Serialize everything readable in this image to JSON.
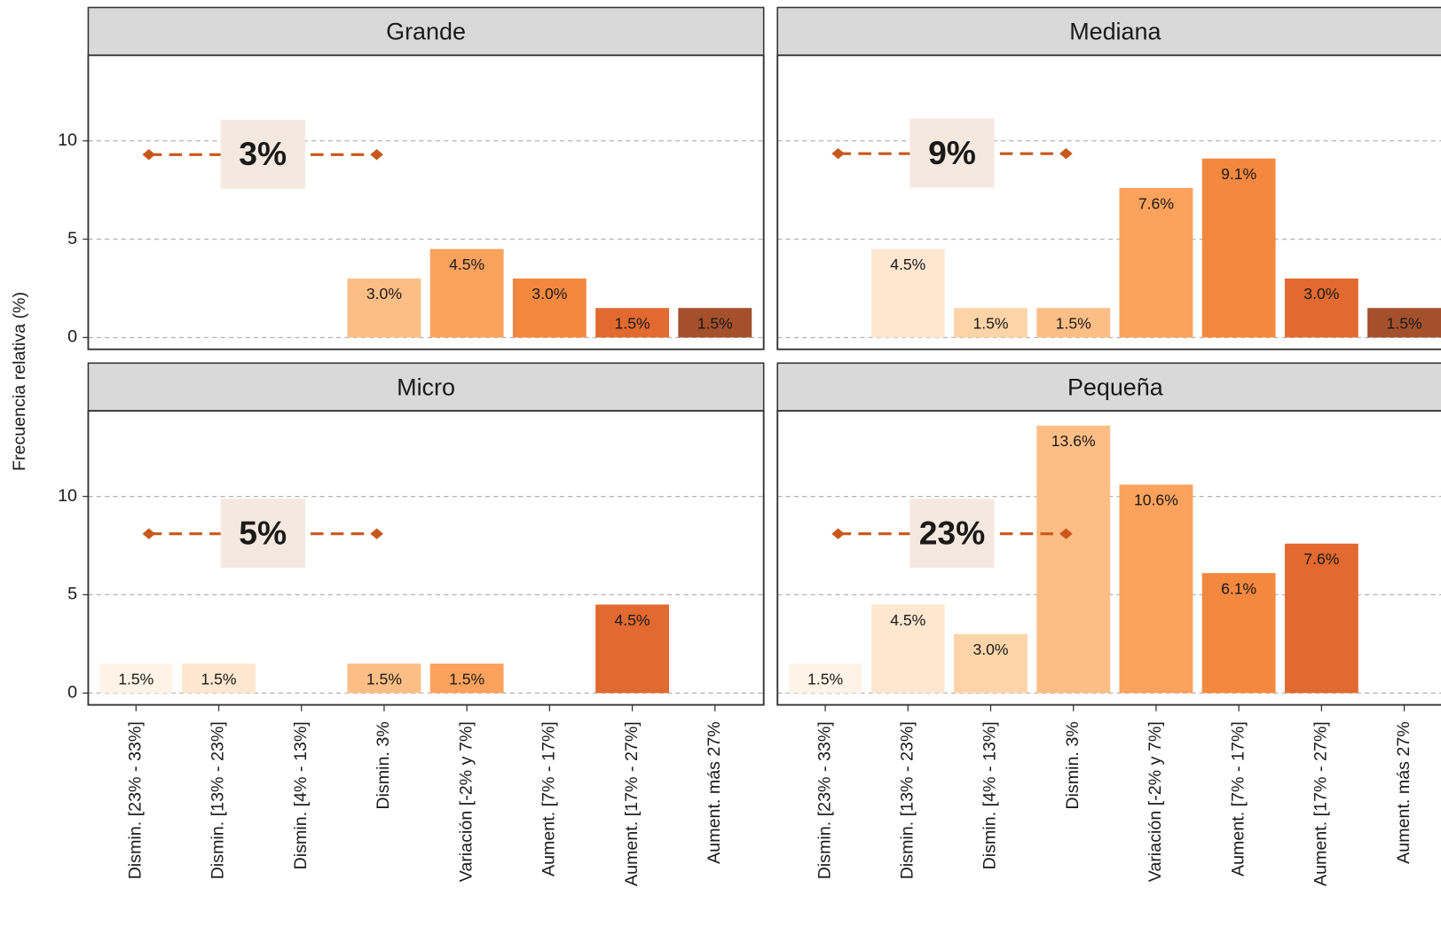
{
  "chart_data": {
    "type": "bar",
    "ylabel": "Frecuencia relativa (%)",
    "categories": [
      "Dismin. [23% - 33%]",
      "Dismin. [13% - 23%]",
      "Dismin. [4% - 13%]",
      "Dismin. 3%",
      "Variación [-2% y 7%]",
      "Aument. [7% - 17%]",
      "Aument. [17% - 27%]",
      "Aument. más 27%"
    ],
    "colors": [
      "#fff3e8",
      "#fee6cf",
      "#fdd4a8",
      "#fdbe86",
      "#fca25d",
      "#f4883f",
      "#e2692f",
      "#a3502b"
    ],
    "ylim": [
      -0.6,
      14.35
    ],
    "yticks": [
      0,
      5,
      10
    ],
    "grid": true,
    "facets": [
      {
        "title": "Grande",
        "values": [
          null,
          null,
          null,
          3.0,
          4.5,
          3.0,
          1.5,
          1.5
        ],
        "value_labels": [
          null,
          null,
          null,
          "3.0%",
          "4.5%",
          "3.0%",
          "1.5%",
          "1.5%"
        ],
        "annotation": {
          "text": "3%",
          "y": 9.3
        }
      },
      {
        "title": "Mediana",
        "values": [
          null,
          4.5,
          1.5,
          1.5,
          7.6,
          9.1,
          3.0,
          1.5
        ],
        "value_labels": [
          null,
          "4.5%",
          "1.5%",
          "1.5%",
          "7.6%",
          "9.1%",
          "3.0%",
          "1.5%"
        ],
        "annotation": {
          "text": "9%",
          "y": 9.35
        }
      },
      {
        "title": "Micro",
        "values": [
          1.5,
          1.5,
          null,
          1.5,
          1.5,
          null,
          4.5,
          null
        ],
        "value_labels": [
          "1.5%",
          "1.5%",
          null,
          "1.5%",
          "1.5%",
          null,
          "4.5%",
          null
        ],
        "annotation": {
          "text": "5%",
          "y": 8.1
        }
      },
      {
        "title": "Pequeña",
        "values": [
          1.5,
          4.5,
          3.0,
          13.6,
          10.6,
          6.1,
          7.6,
          null
        ],
        "value_labels": [
          "1.5%",
          "4.5%",
          "3.0%",
          "13.6%",
          "10.6%",
          "6.1%",
          "7.6%",
          null
        ],
        "annotation": {
          "text": "23%",
          "y": 8.1
        }
      }
    ]
  }
}
